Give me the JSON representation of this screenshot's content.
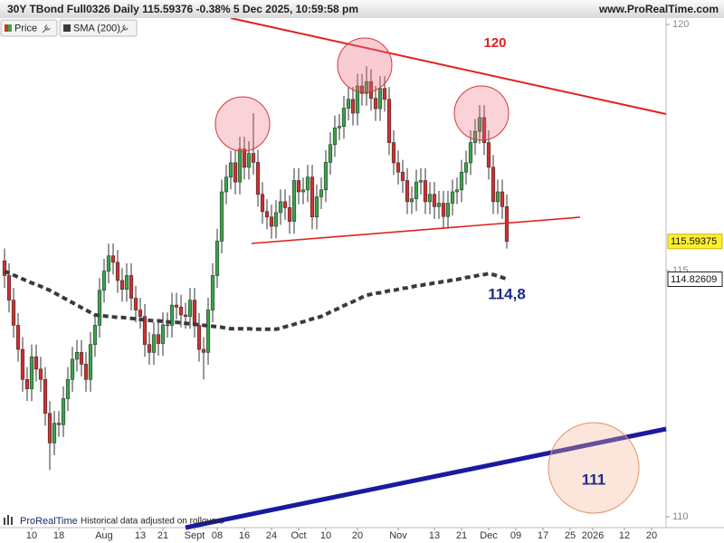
{
  "chart_data": {
    "type": "candlestick",
    "title": "30Y TBond Full0326 Daily 115.59376 -0.38% 5 Dec 2025, 10:59:58 pm",
    "source": "www.ProRealTime.com",
    "footer": {
      "logo": "ProRealTime",
      "note": "Historical data adjusted on rollovers"
    },
    "grid": false,
    "ylim": [
      109.78,
      120.24
    ],
    "yticks": [
      110,
      115,
      120
    ],
    "categories": [
      null,
      null,
      null,
      null,
      null,
      null,
      "10",
      null,
      null,
      null,
      null,
      null,
      "18",
      null,
      null,
      null,
      null,
      null,
      null,
      null,
      null,
      null,
      "Aug",
      null,
      null,
      null,
      null,
      null,
      null,
      null,
      "13",
      null,
      null,
      null,
      null,
      "21",
      null,
      null,
      null,
      null,
      null,
      null,
      "Sept",
      null,
      null,
      null,
      null,
      "08",
      null,
      null,
      null,
      null,
      null,
      "16",
      null,
      null,
      null,
      null,
      null,
      "24",
      null,
      null,
      null,
      null,
      null,
      "Oct",
      null,
      null,
      null,
      null,
      null,
      "10",
      null,
      null,
      null,
      null,
      null,
      null,
      "20",
      null,
      null,
      null,
      null,
      null,
      null,
      null,
      null,
      "Nov",
      null,
      null,
      null,
      null,
      null,
      null,
      null,
      "13",
      null,
      null,
      null,
      null,
      null,
      "21",
      null,
      null,
      null,
      null,
      null,
      "Dec",
      null,
      null,
      null,
      null,
      null,
      "09",
      null,
      null,
      null,
      null,
      null,
      "17",
      null,
      null,
      null,
      null,
      null,
      "25",
      null,
      null,
      null,
      null,
      "2026",
      null,
      null,
      null,
      null,
      null,
      null,
      "12",
      null,
      null,
      null,
      null,
      null,
      "20",
      null,
      null,
      null
    ],
    "series": [
      {
        "name": "Price",
        "up_color": "#3aa64a",
        "down_color": "#d22f2f",
        "open": [
          115.2,
          114.9,
          114.4,
          113.89,
          113.4,
          112.79,
          112.6,
          113.25,
          113.0,
          112.79,
          112.1,
          111.5,
          111.9,
          111.87,
          112.4,
          112.79,
          113.2,
          113.34,
          113.1,
          112.79,
          113.5,
          113.89,
          114.6,
          114.99,
          115.3,
          115.17,
          114.8,
          114.62,
          114.9,
          114.44,
          114.2,
          114.07,
          113.5,
          113.34,
          113.7,
          113.52,
          113.9,
          113.89,
          114.3,
          114.26,
          114.1,
          114.07,
          114.4,
          113.89,
          113.4,
          113.34,
          114.2,
          114.9,
          115.6,
          116.6,
          116.9,
          117.19,
          116.8,
          117.47,
          117.1,
          117.38,
          117.2,
          116.55,
          116.2,
          116.09,
          115.9,
          116.18,
          116.4,
          116.28,
          116.0,
          116.83,
          116.6,
          116.64,
          116.9,
          116.09,
          116.5,
          116.64,
          117.2,
          117.56,
          117.9,
          117.93,
          118.3,
          118.48,
          118.2,
          118.75,
          118.6,
          118.84,
          118.5,
          118.29,
          118.7,
          118.48,
          117.6,
          117.19,
          117.0,
          116.83,
          116.4,
          116.46,
          116.8,
          116.83,
          116.4,
          116.55,
          116.3,
          116.37,
          116.1,
          116.37,
          116.6,
          116.64,
          117.0,
          117.19,
          117.6,
          117.83,
          118.11,
          117.6,
          117.1,
          116.4,
          116.6,
          116.3,
          null,
          null,
          null,
          null,
          null,
          null,
          null,
          null,
          null,
          null,
          null,
          null,
          null,
          null,
          null,
          null,
          null,
          null,
          null,
          null,
          null,
          null,
          null,
          null,
          null,
          null,
          null,
          null,
          null,
          null,
          null,
          null,
          null,
          null,
          null
        ],
        "high": [
          115.45,
          115.15,
          114.65,
          114.14,
          113.65,
          113.04,
          113.5,
          113.5,
          113.25,
          113.04,
          112.35,
          112.15,
          112.15,
          112.65,
          113.04,
          113.45,
          113.59,
          113.59,
          113.35,
          113.75,
          114.14,
          114.85,
          115.24,
          115.55,
          115.55,
          115.42,
          115.05,
          115.15,
          115.15,
          114.69,
          114.45,
          114.32,
          113.75,
          113.95,
          113.95,
          114.15,
          114.15,
          114.55,
          114.55,
          114.51,
          114.35,
          114.65,
          114.65,
          114.14,
          113.65,
          114.45,
          115.15,
          115.85,
          116.85,
          117.15,
          117.44,
          117.44,
          117.72,
          117.72,
          117.63,
          118.2,
          117.45,
          116.8,
          116.45,
          116.34,
          116.43,
          116.65,
          116.65,
          116.53,
          117.08,
          117.08,
          116.89,
          117.15,
          117.15,
          116.75,
          116.89,
          117.45,
          117.81,
          118.15,
          118.18,
          118.55,
          118.73,
          118.73,
          119.0,
          119.0,
          119.15,
          119.09,
          118.75,
          118.95,
          118.95,
          118.73,
          117.85,
          117.44,
          117.25,
          117.08,
          116.71,
          117.05,
          117.08,
          117.08,
          116.8,
          116.8,
          116.62,
          116.62,
          116.62,
          116.85,
          116.89,
          117.25,
          117.44,
          117.85,
          118.08,
          118.36,
          118.36,
          117.85,
          117.35,
          116.85,
          116.85,
          116.55,
          null,
          null,
          null,
          null,
          null,
          null,
          null,
          null,
          null,
          null,
          null,
          null,
          null,
          null,
          null,
          null,
          null,
          null,
          null,
          null,
          null,
          null,
          null,
          null,
          null,
          null,
          null,
          null,
          null,
          null,
          null,
          null,
          null,
          null,
          null
        ],
        "low": [
          114.65,
          114.15,
          113.64,
          113.15,
          112.54,
          112.35,
          112.35,
          112.75,
          112.54,
          111.85,
          110.95,
          111.25,
          111.62,
          111.62,
          112.15,
          112.54,
          112.95,
          112.85,
          112.54,
          112.54,
          113.25,
          113.64,
          114.35,
          114.74,
          114.92,
          114.55,
          114.37,
          114.37,
          114.19,
          113.95,
          113.82,
          113.25,
          113.09,
          113.09,
          113.27,
          113.27,
          113.64,
          113.64,
          114.01,
          113.85,
          113.82,
          113.82,
          113.64,
          113.15,
          112.79,
          113.09,
          113.95,
          114.65,
          115.35,
          116.35,
          116.65,
          116.55,
          116.55,
          116.85,
          116.85,
          116.95,
          116.3,
          115.95,
          115.84,
          115.65,
          115.65,
          115.93,
          116.03,
          115.75,
          115.75,
          116.35,
          116.35,
          116.39,
          115.84,
          115.84,
          116.25,
          116.39,
          116.95,
          117.31,
          117.65,
          117.68,
          118.05,
          117.95,
          117.95,
          118.35,
          118.35,
          118.25,
          118.04,
          118.04,
          118.23,
          117.35,
          116.94,
          116.75,
          116.58,
          116.15,
          116.15,
          116.21,
          116.55,
          116.15,
          116.15,
          116.05,
          116.05,
          115.85,
          115.85,
          116.12,
          116.35,
          116.39,
          116.75,
          116.94,
          117.35,
          117.58,
          117.35,
          116.85,
          116.15,
          116.15,
          116.05,
          115.45,
          null,
          null,
          null,
          null,
          null,
          null,
          null,
          null,
          null,
          null,
          null,
          null,
          null,
          null,
          null,
          null,
          null,
          null,
          null,
          null,
          null,
          null,
          null,
          null,
          null,
          null,
          null,
          null,
          null,
          null,
          null,
          null,
          null,
          null,
          null
        ],
        "close": [
          114.9,
          114.4,
          113.89,
          113.4,
          112.79,
          112.6,
          113.25,
          113.0,
          112.79,
          112.1,
          111.5,
          111.9,
          111.87,
          112.4,
          112.79,
          113.2,
          113.34,
          113.1,
          112.79,
          113.5,
          113.89,
          114.6,
          114.99,
          115.3,
          115.17,
          114.8,
          114.62,
          114.9,
          114.44,
          114.2,
          114.07,
          113.5,
          113.34,
          113.7,
          113.52,
          113.9,
          113.89,
          114.3,
          114.26,
          114.1,
          114.07,
          114.4,
          113.89,
          113.4,
          113.34,
          114.2,
          114.9,
          115.6,
          116.6,
          116.9,
          117.19,
          116.8,
          117.47,
          117.1,
          117.38,
          117.2,
          116.55,
          116.2,
          116.09,
          115.9,
          116.18,
          116.4,
          116.28,
          116.0,
          116.83,
          116.6,
          116.64,
          116.9,
          116.09,
          116.5,
          116.64,
          117.2,
          117.56,
          117.9,
          117.93,
          118.3,
          118.48,
          118.2,
          118.75,
          118.6,
          118.84,
          118.5,
          118.29,
          118.7,
          118.48,
          117.6,
          117.19,
          117.0,
          116.83,
          116.4,
          116.46,
          116.8,
          116.83,
          116.4,
          116.55,
          116.3,
          116.37,
          116.1,
          116.37,
          116.6,
          116.64,
          117.0,
          117.19,
          117.6,
          117.83,
          118.11,
          117.6,
          117.1,
          116.4,
          116.6,
          116.3,
          115.59375,
          null,
          null,
          null,
          null,
          null,
          null,
          null,
          null,
          null,
          null,
          null,
          null,
          null,
          null,
          null,
          null,
          null,
          null,
          null,
          null,
          null,
          null,
          null,
          null,
          null,
          null,
          null,
          null,
          null,
          null,
          null,
          null,
          null,
          null,
          null
        ]
      },
      {
        "name": "SMA (200)",
        "color": "#3a3a3a",
        "values": [
          114.99,
          114.95,
          114.91,
          114.87,
          114.83,
          114.79,
          114.75,
          114.72,
          114.68,
          114.64,
          114.6,
          114.55,
          114.5,
          114.45,
          114.4,
          114.35,
          114.3,
          114.25,
          114.2,
          114.15,
          114.1,
          114.09,
          114.08,
          114.07,
          114.06,
          114.05,
          114.05,
          114.04,
          114.03,
          114.02,
          114.01,
          114.0,
          113.99,
          113.98,
          113.98,
          113.97,
          113.96,
          113.95,
          113.95,
          113.94,
          113.93,
          113.92,
          113.91,
          113.9,
          113.89,
          113.88,
          113.87,
          113.86,
          113.85,
          113.83,
          113.82,
          113.82,
          113.82,
          113.82,
          113.82,
          113.81,
          113.81,
          113.81,
          113.81,
          113.81,
          113.81,
          113.83,
          113.86,
          113.88,
          113.91,
          113.94,
          113.96,
          113.99,
          114.02,
          114.04,
          114.07,
          114.11,
          114.16,
          114.2,
          114.24,
          114.29,
          114.33,
          114.37,
          114.41,
          114.46,
          114.5,
          114.52,
          114.54,
          114.55,
          114.57,
          114.59,
          114.6,
          114.62,
          114.64,
          114.65,
          114.67,
          114.69,
          114.7,
          114.72,
          114.73,
          114.75,
          114.76,
          114.78,
          114.79,
          114.81,
          114.82,
          114.84,
          114.86,
          114.87,
          114.89,
          114.91,
          114.92,
          114.94,
          114.92,
          114.89,
          114.86,
          114.82609,
          null,
          null,
          null,
          null,
          null,
          null,
          null,
          null,
          null,
          null,
          null,
          null,
          null,
          null,
          null,
          null,
          null,
          null,
          null,
          null,
          null,
          null,
          null,
          null,
          null,
          null,
          null,
          null,
          null,
          null,
          null,
          null,
          null,
          null,
          null
        ]
      }
    ],
    "annotations": [
      {
        "text": "120",
        "color": "#e02020"
      },
      {
        "text": "114,8",
        "color": "#1b2a8c"
      },
      {
        "text": "111",
        "color": "#1b2a8c"
      }
    ]
  }
}
